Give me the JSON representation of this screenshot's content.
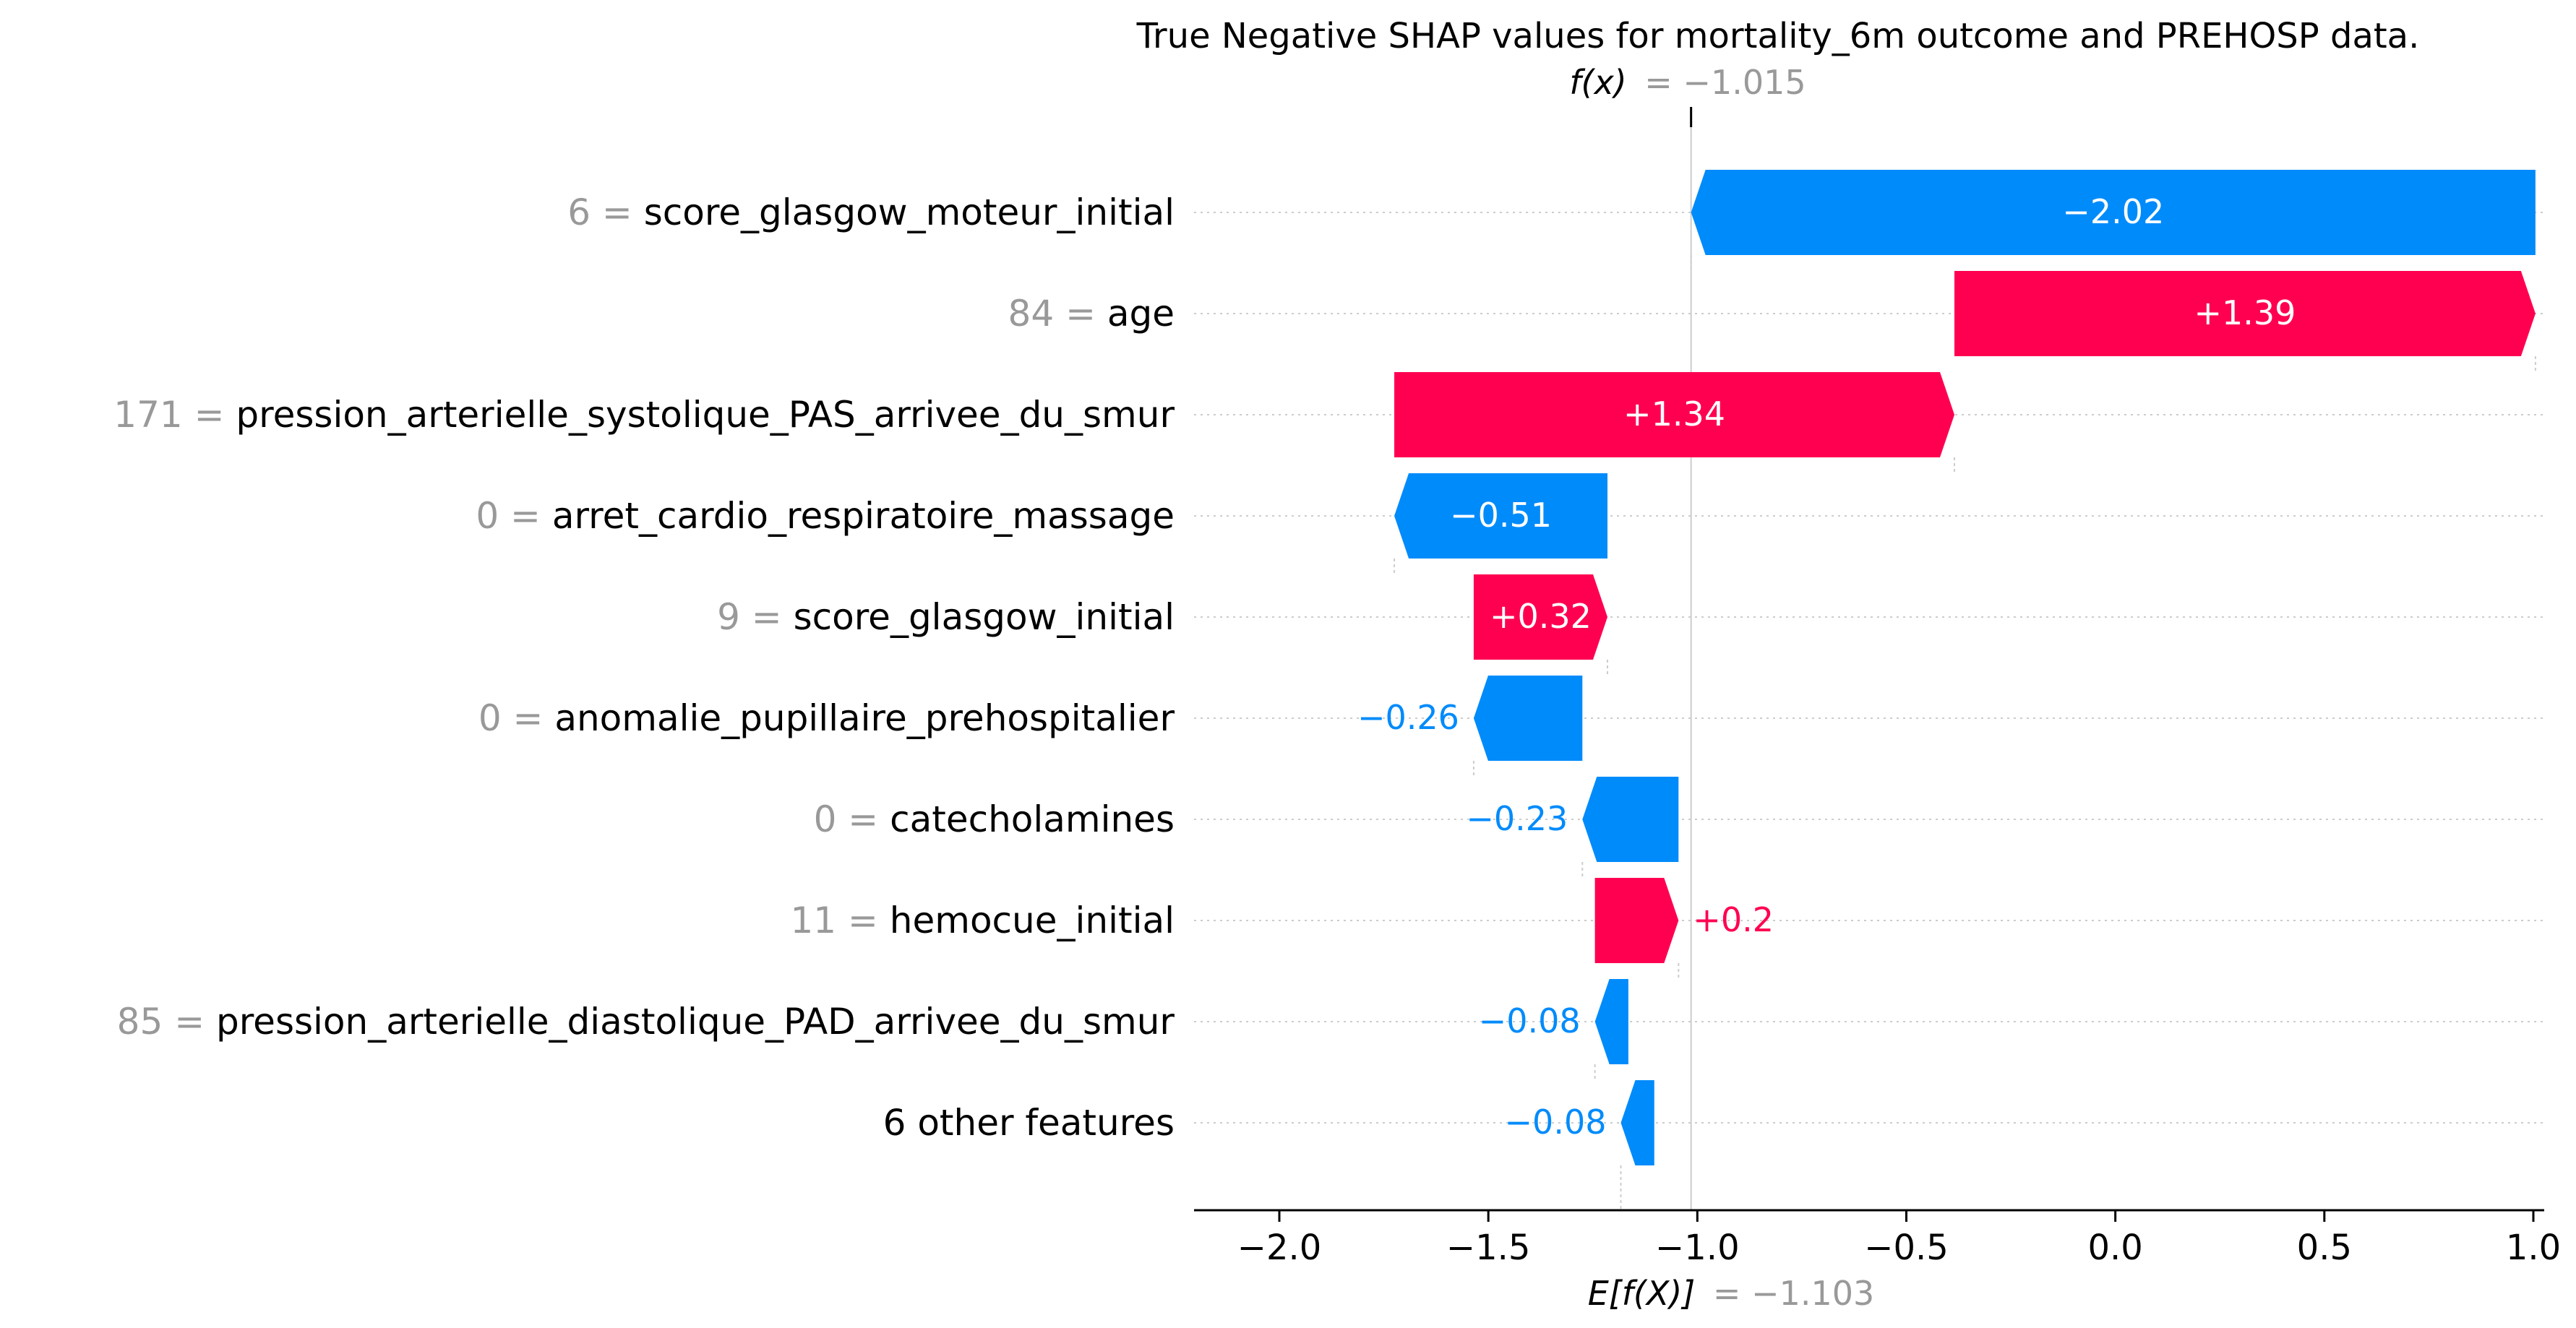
{
  "chart_data": {
    "type": "waterfall",
    "title": "True Negative SHAP values for mortality_6m outcome and PREHOSP data.",
    "fx_label": "f(x)",
    "fx_value": "= −1.015",
    "fx": -1.015,
    "efx_label": "E[f(X)]",
    "efx_value": "= −1.103",
    "efx": -1.103,
    "xlim": [
      -2.2,
      1.0
    ],
    "xticks": [
      {
        "value": -2.0,
        "label": "−2.0"
      },
      {
        "value": -1.5,
        "label": "−1.5"
      },
      {
        "value": -1.0,
        "label": "−1.0"
      },
      {
        "value": -0.5,
        "label": "−0.5"
      },
      {
        "value": 0.0,
        "label": "0.0"
      },
      {
        "value": 0.5,
        "label": "0.5"
      },
      {
        "value": 1.0,
        "label": "1.0"
      }
    ],
    "features": [
      {
        "value_text": "6",
        "name": "score_glasgow_moteur_initial",
        "shap": -2.02,
        "label": "−2.02",
        "start": 1.005
      },
      {
        "value_text": "84",
        "name": "age",
        "shap": 1.39,
        "label": "+1.39",
        "start": -0.385
      },
      {
        "value_text": "171",
        "name": "pression_arterielle_systolique_PAS_arrivee_du_smur",
        "shap": 1.34,
        "label": "+1.34",
        "start": -1.725
      },
      {
        "value_text": "0",
        "name": "arret_cardio_respiratoire_massage",
        "shap": -0.51,
        "label": "−0.51",
        "start": -1.215
      },
      {
        "value_text": "9",
        "name": "score_glasgow_initial",
        "shap": 0.32,
        "label": "+0.32",
        "start": -1.535
      },
      {
        "value_text": "0",
        "name": "anomalie_pupillaire_prehospitalier",
        "shap": -0.26,
        "label": "−0.26",
        "start": -1.275
      },
      {
        "value_text": "0",
        "name": "catecholamines",
        "shap": -0.23,
        "label": "−0.23",
        "start": -1.045
      },
      {
        "value_text": "11",
        "name": "hemocue_initial",
        "shap": 0.2,
        "label": "+0.2",
        "start": -1.245
      },
      {
        "value_text": "85",
        "name": "pression_arterielle_diastolique_PAD_arrivee_du_smur",
        "shap": -0.08,
        "label": "−0.08",
        "start": -1.165
      },
      {
        "value_text": "",
        "name": "6 other features",
        "shap": -0.08,
        "label": "−0.08",
        "start": -1.103
      }
    ],
    "colors": {
      "positive": "#ff0051",
      "negative": "#008bfb",
      "value_text": "#999999",
      "text": "#000000",
      "gridline": "#cccccc"
    }
  }
}
